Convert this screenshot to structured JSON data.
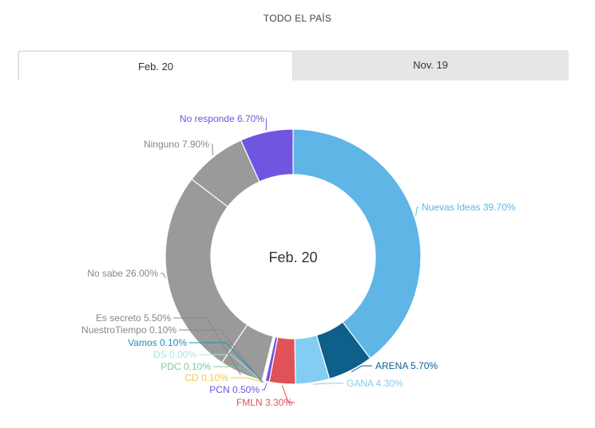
{
  "header": {
    "title": "TODO EL PAÍS"
  },
  "tabs": [
    {
      "label": "Feb. 20",
      "active": true
    },
    {
      "label": "Nov. 19",
      "active": false
    }
  ],
  "chart_data": {
    "type": "pie",
    "donut": true,
    "center_label": "Feb. 20",
    "slices": [
      {
        "name": "Nuevas Ideas",
        "value": 39.7,
        "label": "Nuevas Ideas 39.70%",
        "color": "#5eb5e6",
        "text_color": "#5eb5e6"
      },
      {
        "name": "ARENA",
        "value": 5.7,
        "label": "ARENA 5.70%",
        "color": "#0e5f8a",
        "text_color": "#0e5f8a"
      },
      {
        "name": "GANA",
        "value": 4.3,
        "label": "GANA 4.30%",
        "color": "#84cdf2",
        "text_color": "#84cdf2"
      },
      {
        "name": "FMLN",
        "value": 3.3,
        "label": "FMLN 3.30%",
        "color": "#e05158",
        "text_color": "#e05158"
      },
      {
        "name": "PCN",
        "value": 0.5,
        "label": "PCN 0.50%",
        "color": "#6f55e0",
        "text_color": "#6f55e0"
      },
      {
        "name": "CD",
        "value": 0.1,
        "label": "CD 0.10%",
        "color": "#f2c84b",
        "text_color": "#f2c84b"
      },
      {
        "name": "PDC",
        "value": 0.1,
        "label": "PDC 0.10%",
        "color": "#7fc8a0",
        "text_color": "#7fc8a0"
      },
      {
        "name": "DS",
        "value": 0.0,
        "label": "DS 0.00%",
        "color": "#a8e6dc",
        "text_color": "#a8e6dc"
      },
      {
        "name": "Vamos",
        "value": 0.1,
        "label": "Vamos 0.10%",
        "color": "#1e8fc0",
        "text_color": "#1e8fc0"
      },
      {
        "name": "NuestroTiempo",
        "value": 0.1,
        "label": "NuestroTiempo 0.10%",
        "color": "#9a9a9a",
        "text_color": "#888888"
      },
      {
        "name": "Es secreto",
        "value": 5.5,
        "label": "Es secreto 5.50%",
        "color": "#9a9a9a",
        "text_color": "#888888"
      },
      {
        "name": "No sabe",
        "value": 26.0,
        "label": "No sabe 26.00%",
        "color": "#9a9a9a",
        "text_color": "#888888"
      },
      {
        "name": "Ninguno",
        "value": 7.9,
        "label": "Ninguno 7.90%",
        "color": "#9a9a9a",
        "text_color": "#888888"
      },
      {
        "name": "No responde",
        "value": 6.7,
        "label": "No responde 6.70%",
        "color": "#6f55e0",
        "text_color": "#6f55e0"
      }
    ]
  }
}
